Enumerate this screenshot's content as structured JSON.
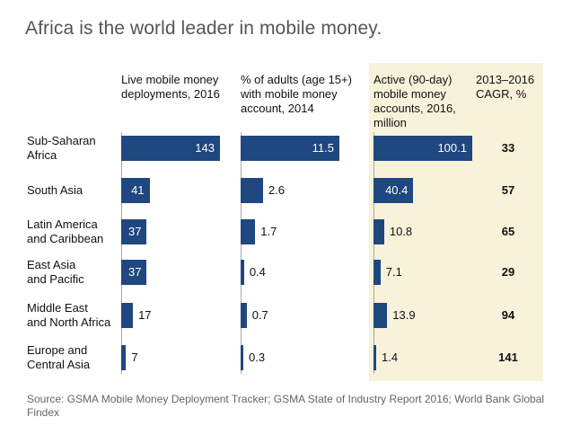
{
  "chart_data": {
    "type": "bar",
    "title": "Africa is the world leader in mobile money.",
    "categories": [
      [
        "Sub-Saharan",
        "Africa"
      ],
      [
        "South Asia"
      ],
      [
        "Latin America",
        "and Caribbean"
      ],
      [
        "East Asia",
        "and Pacific"
      ],
      [
        "Middle East",
        "and North Africa"
      ],
      [
        "Europe and",
        "Central Asia"
      ]
    ],
    "series": [
      {
        "name": [
          "Live mobile money",
          "deployments, 2016"
        ],
        "values": [
          143,
          41,
          37,
          37,
          17,
          7
        ],
        "labels": [
          "143",
          "41",
          "37",
          "37",
          "17",
          "7"
        ],
        "max": 143
      },
      {
        "name": [
          "% of adults (age 15+)",
          "with mobile money",
          "account, 2014"
        ],
        "values": [
          11.5,
          2.6,
          1.7,
          0.4,
          0.7,
          0.3
        ],
        "labels": [
          "11.5",
          "2.6",
          "1.7",
          "0.4",
          "0.7",
          "0.3"
        ],
        "max": 11.5
      },
      {
        "name": [
          "Active (90-day)",
          "mobile money",
          "accounts, 2016,",
          "million"
        ],
        "values": [
          100.1,
          40.4,
          10.8,
          7.1,
          13.9,
          1.4
        ],
        "labels": [
          "100.1",
          "40.4",
          "10.8",
          "7.1",
          "13.9",
          "1.4"
        ],
        "max": 100.1,
        "highlighted": true
      }
    ],
    "cagr": {
      "name": [
        "2013–2016",
        "CAGR, %"
      ],
      "values": [
        "33",
        "57",
        "65",
        "29",
        "94",
        "141"
      ]
    },
    "source": "Source: GSMA Mobile Money Deployment Tracker; GSMA State of Industry Report 2016; World Bank Global Findex",
    "colors": {
      "bar": "#1f4780",
      "highlight": "#f8f2da",
      "title": "#555555"
    }
  }
}
